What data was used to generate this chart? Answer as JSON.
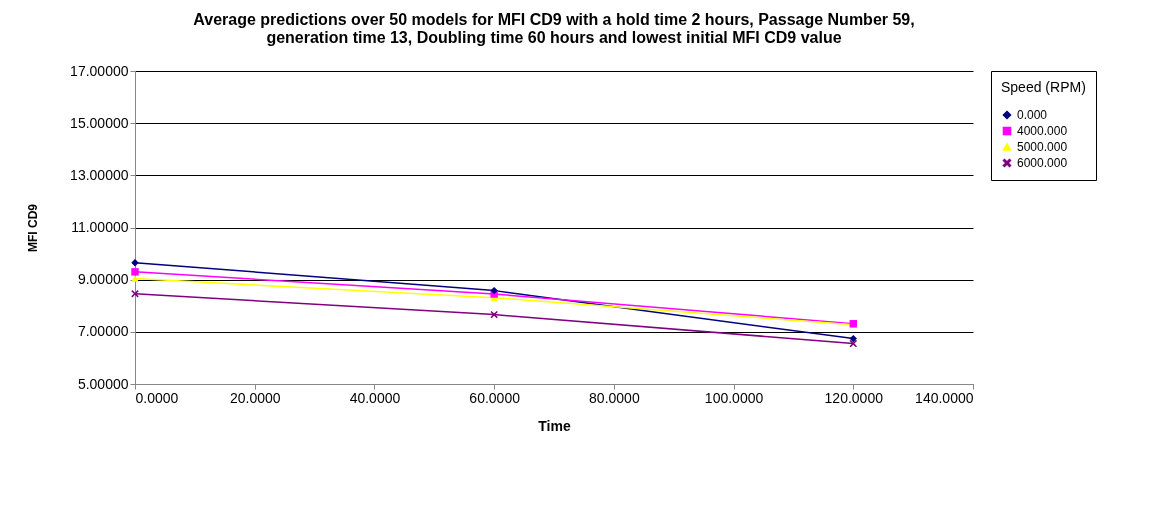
{
  "chart_data": {
    "type": "line",
    "title": "Average predictions over 50 models for MFI CD9 with a hold time 2 hours, Passage Number 59, generation time 13, Doubling time 60 hours and lowest initial MFI CD9 value",
    "xlabel": "Time",
    "ylabel": "MFI CD9",
    "legend_title": "Speed (RPM)",
    "legend": "right",
    "grid": "y",
    "x": [
      0,
      60,
      120
    ],
    "series": [
      {
        "name": "0.000",
        "color": "#000080",
        "marker": "diamond",
        "values": [
          9.65,
          8.58,
          6.74
        ]
      },
      {
        "name": "4000.000",
        "color": "#ff00ff",
        "marker": "square",
        "values": [
          9.3,
          8.45,
          7.31
        ]
      },
      {
        "name": "5000.000",
        "color": "#ffff00",
        "marker": "triangle",
        "values": [
          9.04,
          8.31,
          7.27
        ]
      },
      {
        "name": "6000.000",
        "color": "#800080",
        "marker": "cross",
        "values": [
          8.46,
          7.66,
          6.55
        ]
      }
    ],
    "xlim": [
      0,
      140
    ],
    "xticks": [
      {
        "value": 0,
        "label": "0.0000"
      },
      {
        "value": 20,
        "label": "20.0000"
      },
      {
        "value": 40,
        "label": "40.0000"
      },
      {
        "value": 60,
        "label": "60.0000"
      },
      {
        "value": 80,
        "label": "80.0000"
      },
      {
        "value": 100,
        "label": "100.0000"
      },
      {
        "value": 120,
        "label": "120.0000"
      },
      {
        "value": 140,
        "label": "140.0000"
      }
    ],
    "ylim": [
      5,
      17
    ],
    "yticks": [
      {
        "value": 5,
        "label": "5.00000"
      },
      {
        "value": 7,
        "label": "7.00000"
      },
      {
        "value": 9,
        "label": "9.00000"
      },
      {
        "value": 11,
        "label": "11.00000"
      },
      {
        "value": 13,
        "label": "13.00000"
      },
      {
        "value": 15,
        "label": "15.00000"
      },
      {
        "value": 17,
        "label": "17.00000"
      }
    ]
  }
}
